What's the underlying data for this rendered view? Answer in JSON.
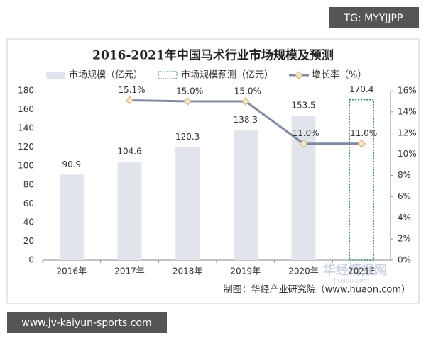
{
  "tag": "TG: MYYJJPP",
  "site": "www.jv-kaiyun-sports.com",
  "watermark": {
    "name": "华经情报网",
    "url": "huaon.com"
  },
  "chart_data": {
    "type": "bar",
    "title": "2016-2021年中国马术行业市场规模及预测",
    "source": "制图：华经产业研究院（www.huaon.com）",
    "categories": [
      "2016年",
      "2017年",
      "2018年",
      "2019年",
      "2020年",
      "2021E"
    ],
    "series": [
      {
        "name": "市场规模（亿元）",
        "color": "#e1e4ea",
        "values": [
          90.9,
          104.6,
          120.3,
          138.3,
          153.5,
          null
        ]
      },
      {
        "name": "市场规模预测（亿元）",
        "color": "#2f7d66",
        "values": [
          null,
          null,
          null,
          null,
          null,
          170.4
        ]
      },
      {
        "name": "增长率（%）",
        "color": "#7f89a4",
        "axis": "y2",
        "values": [
          null,
          15.1,
          15.0,
          15.0,
          11.0,
          11.0
        ],
        "value_labels": [
          null,
          "15.1%",
          "15.0%",
          "15.0%",
          "11.0%",
          "11.0%"
        ]
      }
    ],
    "ylim": [
      0,
      180
    ],
    "yticks": [
      0,
      20,
      40,
      60,
      80,
      100,
      120,
      140,
      160,
      180
    ],
    "y2lim": [
      0,
      16
    ],
    "y2ticks": [
      {
        "value": 0,
        "label": "0%"
      },
      {
        "value": 2,
        "label": "2%"
      },
      {
        "value": 4,
        "label": "4%"
      },
      {
        "value": 6,
        "label": "6%"
      },
      {
        "value": 8,
        "label": "8%"
      },
      {
        "value": 10,
        "label": "10%"
      },
      {
        "value": 12,
        "label": "12%"
      },
      {
        "value": 14,
        "label": "14%"
      },
      {
        "value": 16,
        "label": "16%"
      }
    ],
    "grid": false
  }
}
